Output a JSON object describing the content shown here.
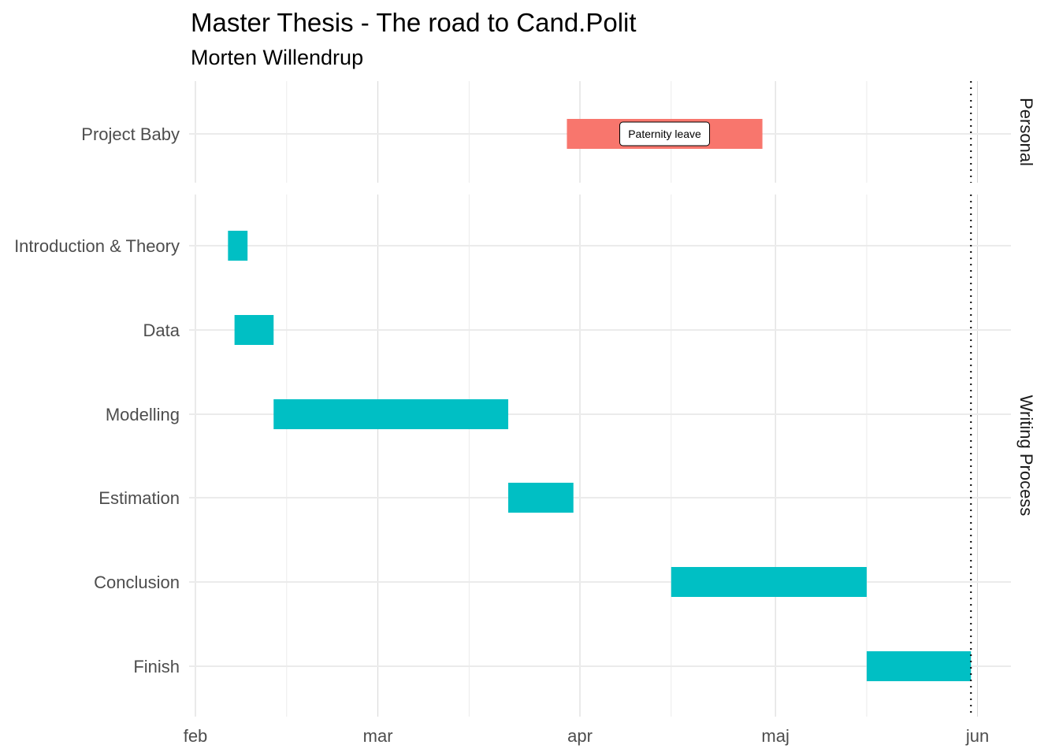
{
  "title": "Master Thesis - The road to Cand.Polit",
  "subtitle": "Morten Willendrup",
  "chart_data": {
    "type": "gantt",
    "x_axis": {
      "ticks": [
        "feb",
        "mar",
        "apr",
        "maj",
        "jun"
      ]
    },
    "deadline_line": {
      "date": "2019-05-31",
      "style": "dotted"
    },
    "colors": {
      "Personal": "#F8766D",
      "Writing Process": "#00BFC4"
    },
    "panels": [
      {
        "name": "Personal",
        "tasks": [
          {
            "label": "Project Baby",
            "start": "2019-03-30",
            "end": "2019-04-29",
            "annotation": "Paternity leave"
          }
        ]
      },
      {
        "name": "Writing Process",
        "tasks": [
          {
            "label": "Introduction & Theory",
            "start": "2019-02-06",
            "end": "2019-02-09"
          },
          {
            "label": "Data",
            "start": "2019-02-07",
            "end": "2019-02-13"
          },
          {
            "label": "Modelling",
            "start": "2019-02-13",
            "end": "2019-03-21"
          },
          {
            "label": "Estimation",
            "start": "2019-03-21",
            "end": "2019-03-31"
          },
          {
            "label": "Conclusion",
            "start": "2019-04-15",
            "end": "2019-05-15"
          },
          {
            "label": "Finish",
            "start": "2019-05-15",
            "end": "2019-05-31"
          }
        ]
      }
    ]
  }
}
